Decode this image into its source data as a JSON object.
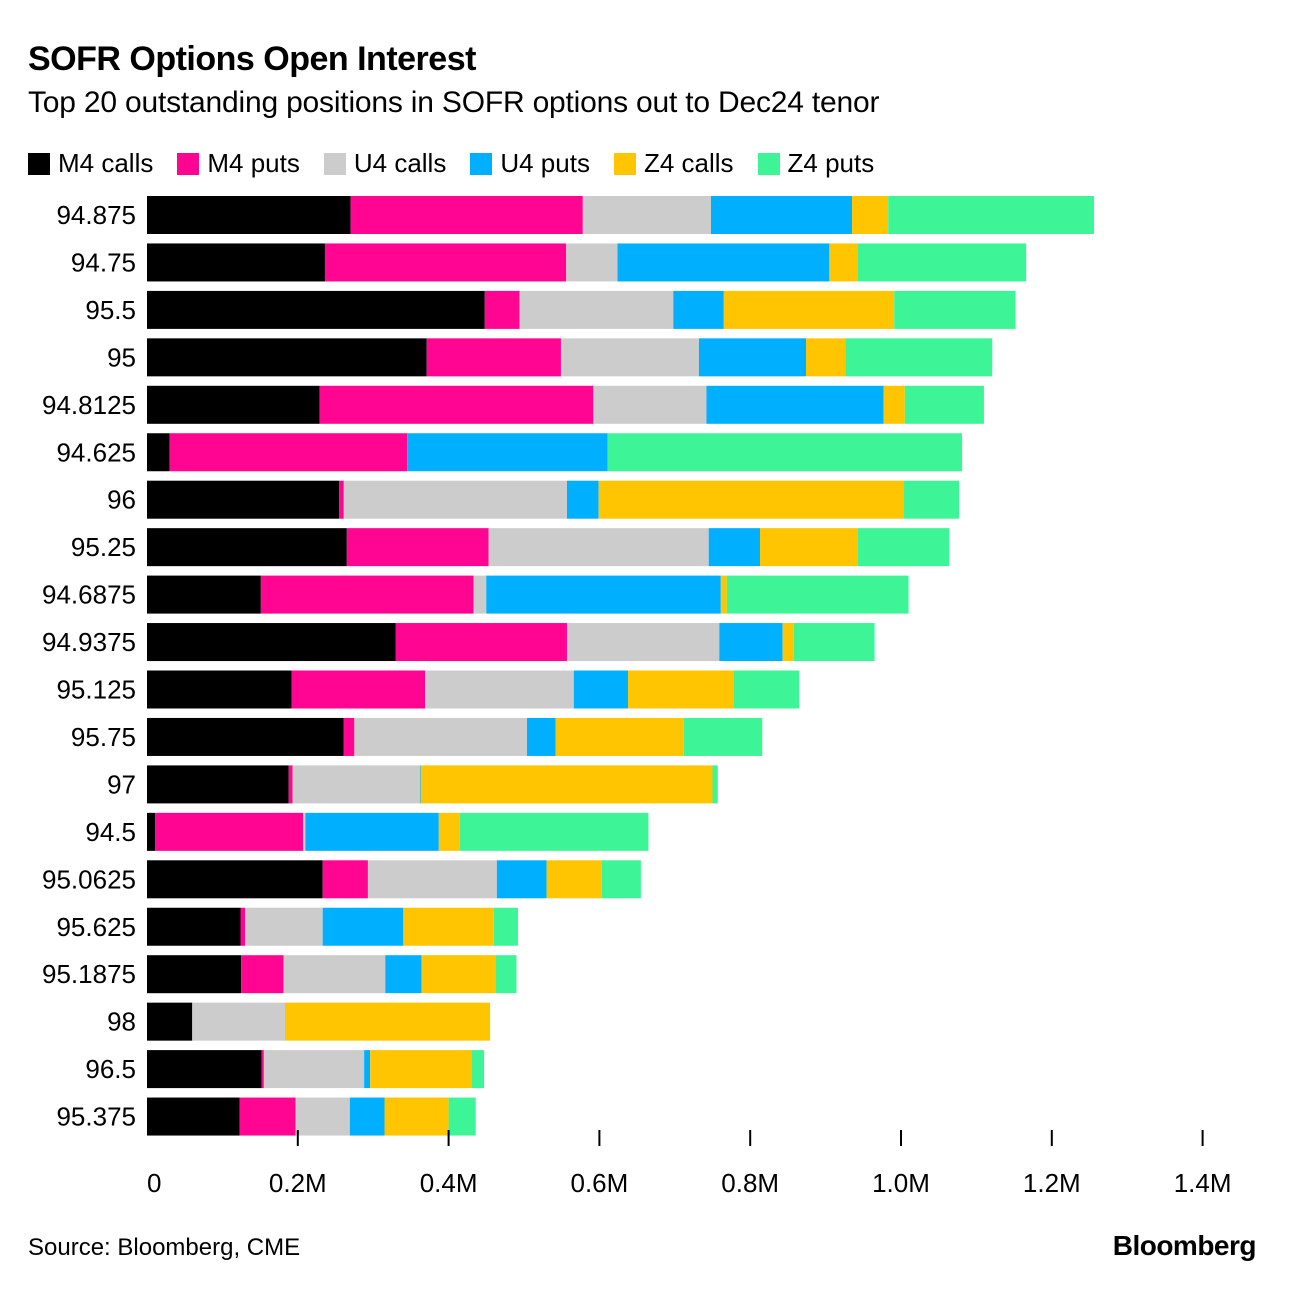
{
  "chart_data": {
    "type": "bar",
    "orientation": "horizontal",
    "stacked": true,
    "title": "SOFR Options Open Interest",
    "subtitle": "Top 20 outstanding positions in SOFR options out to Dec24 tenor",
    "categories": [
      "94.875",
      "94.75",
      "95.5",
      "95",
      "94.8125",
      "94.625",
      "96",
      "95.25",
      "94.6875",
      "94.9375",
      "95.125",
      "95.75",
      "97",
      "94.5",
      "95.0625",
      "95.625",
      "95.1875",
      "98",
      "96.5",
      "95.375"
    ],
    "series": [
      {
        "name": "M4 calls",
        "color": "#000000",
        "values": [
          270000,
          236000,
          448000,
          371000,
          229000,
          30000,
          255000,
          265000,
          151000,
          330000,
          192000,
          261000,
          188000,
          11000,
          233000,
          124000,
          125000,
          60000,
          152000,
          123000
        ]
      },
      {
        "name": "M4 puts",
        "color": "#ff0591",
        "values": [
          308000,
          320000,
          46000,
          178000,
          363000,
          315000,
          6000,
          188000,
          282000,
          227000,
          177000,
          14000,
          5000,
          196000,
          60000,
          6000,
          56000,
          0,
          3000,
          74000
        ]
      },
      {
        "name": "U4 calls",
        "color": "#cccccc",
        "values": [
          170000,
          68000,
          204000,
          183000,
          150000,
          0,
          296000,
          292000,
          17000,
          202000,
          197000,
          229000,
          169000,
          3000,
          171000,
          103000,
          135000,
          123000,
          133000,
          72000
        ]
      },
      {
        "name": "U4 puts",
        "color": "#00b0ff",
        "values": [
          187000,
          281000,
          67000,
          142000,
          235000,
          266000,
          42000,
          68000,
          311000,
          84000,
          72000,
          38000,
          1000,
          177000,
          66000,
          107000,
          48000,
          0,
          8000,
          46000
        ]
      },
      {
        "name": "Z4 calls",
        "color": "#ffc500",
        "values": [
          48000,
          37000,
          226000,
          52000,
          28000,
          0,
          405000,
          130000,
          8000,
          15000,
          140000,
          170000,
          387000,
          28000,
          73000,
          120000,
          98000,
          272000,
          135000,
          85000
        ]
      },
      {
        "name": "Z4 puts",
        "color": "#3df597",
        "values": [
          273000,
          224000,
          161000,
          195000,
          105000,
          470000,
          73000,
          121000,
          241000,
          107000,
          87000,
          104000,
          7000,
          250000,
          52000,
          32000,
          28000,
          0,
          16000,
          36000
        ]
      }
    ],
    "xlim": [
      0,
      1400000
    ],
    "x_ticks": [
      0,
      200000,
      400000,
      600000,
      800000,
      1000000,
      1200000,
      1400000
    ],
    "x_tick_labels": [
      "0",
      "0.2M",
      "0.4M",
      "0.6M",
      "0.8M",
      "1.0M",
      "1.2M",
      "1.4M"
    ],
    "legend": "top",
    "grid": false
  },
  "footer": {
    "source": "Source: Bloomberg, CME",
    "brand": "Bloomberg"
  }
}
